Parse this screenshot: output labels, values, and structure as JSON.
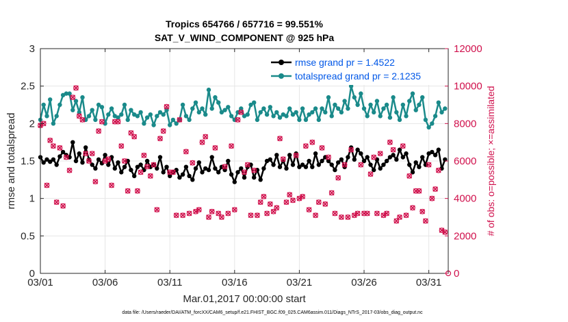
{
  "chart_data": {
    "type": "line",
    "title": "Tropics 654766 / 657716 = 99.551%",
    "subtitle": "SAT_V_WIND_COMPONENT @ 925 hPa",
    "xlabel": "Mar.01,2017 00:00:00 start",
    "ylabel_left": "rmse and totalspread",
    "ylabel_right": "# of obs: o=possible; ×=assimilated",
    "xlim": [
      0,
      31.5
    ],
    "ylim_left": [
      0,
      3
    ],
    "ylim_right": [
      0,
      12000
    ],
    "x_tick_values": [
      0,
      5,
      10,
      15,
      20,
      25,
      30
    ],
    "x_tick_labels": [
      "03/01",
      "03/06",
      "03/11",
      "03/16",
      "03/21",
      "03/26",
      "03/31"
    ],
    "y_left_ticks": [
      "0",
      "0.5",
      "1",
      "1.5",
      "2",
      "2.5",
      "3"
    ],
    "y_right_ticks": [
      "0",
      "2000",
      "4000",
      "6000",
      "8000",
      "10000",
      "12000"
    ],
    "grid": true,
    "legend_position": "top-right",
    "series": [
      {
        "name": "rmse grand pr = 1.4522",
        "axis": "left",
        "color": "#000000",
        "marker": "circle",
        "x": [
          0.0,
          0.25,
          0.5,
          0.75,
          1.0,
          1.25,
          1.5,
          1.75,
          2.0,
          2.25,
          2.5,
          2.75,
          3.0,
          3.25,
          3.5,
          3.75,
          4.0,
          4.25,
          4.5,
          4.75,
          5.0,
          5.25,
          5.5,
          5.75,
          6.0,
          6.25,
          6.5,
          6.75,
          7.0,
          7.25,
          7.5,
          7.75,
          8.0,
          8.25,
          8.5,
          8.75,
          9.0,
          9.25,
          9.5,
          9.75,
          10.0,
          10.25,
          10.5,
          10.75,
          11.0,
          11.25,
          11.5,
          11.75,
          12.0,
          12.25,
          12.5,
          12.75,
          13.0,
          13.25,
          13.5,
          13.75,
          14.0,
          14.25,
          14.5,
          14.75,
          15.0,
          15.25,
          15.5,
          15.75,
          16.0,
          16.25,
          16.5,
          16.75,
          17.0,
          17.25,
          17.5,
          17.75,
          18.0,
          18.25,
          18.5,
          18.75,
          19.0,
          19.25,
          19.5,
          19.75,
          20.0,
          20.25,
          20.5,
          20.75,
          21.0,
          21.25,
          21.5,
          21.75,
          22.0,
          22.25,
          22.5,
          22.75,
          23.0,
          23.25,
          23.5,
          23.75,
          24.0,
          24.25,
          24.5,
          24.75,
          25.0,
          25.25,
          25.5,
          25.75,
          26.0,
          26.25,
          26.5,
          26.75,
          27.0,
          27.25,
          27.5,
          27.75,
          28.0,
          28.25,
          28.5,
          28.75,
          29.0,
          29.25,
          29.5,
          29.75,
          30.0,
          30.25,
          30.5,
          30.75,
          31.0,
          31.25
        ],
        "values": [
          1.55,
          1.48,
          1.52,
          1.49,
          1.52,
          1.45,
          1.56,
          1.62,
          1.58,
          1.55,
          1.75,
          1.5,
          1.6,
          1.48,
          1.68,
          1.52,
          1.45,
          1.4,
          1.52,
          1.47,
          1.58,
          1.45,
          1.55,
          1.4,
          1.48,
          1.35,
          1.42,
          1.5,
          1.38,
          1.3,
          1.42,
          1.45,
          1.38,
          1.5,
          1.42,
          1.45,
          1.4,
          1.55,
          1.35,
          1.42,
          1.3,
          1.35,
          1.38,
          1.28,
          1.32,
          1.42,
          1.3,
          1.25,
          1.4,
          1.48,
          1.35,
          1.4,
          1.38,
          1.55,
          1.4,
          1.35,
          1.42,
          1.38,
          1.5,
          1.32,
          1.22,
          1.35,
          1.4,
          1.28,
          1.42,
          1.45,
          1.28,
          1.38,
          1.25,
          1.4,
          1.5,
          1.52,
          1.45,
          1.58,
          1.42,
          1.5,
          1.4,
          1.58,
          1.45,
          1.6,
          1.42,
          1.45,
          1.42,
          1.5,
          1.42,
          1.6,
          1.45,
          1.5,
          1.55,
          1.5,
          1.45,
          1.38,
          1.48,
          1.52,
          1.42,
          1.55,
          1.68,
          1.52,
          1.65,
          1.6,
          1.5,
          1.55,
          1.45,
          1.38,
          1.52,
          1.4,
          1.45,
          1.5,
          1.55,
          1.58,
          1.52,
          1.65,
          1.55,
          1.6,
          1.45,
          1.35,
          1.48,
          1.42,
          1.55,
          1.45,
          1.6,
          1.62,
          1.58,
          1.65,
          1.4,
          1.52
        ]
      },
      {
        "name": "totalspread grand pr = 2.1235",
        "axis": "left",
        "color": "#1a8a8a",
        "marker": "circle",
        "x": [
          0.0,
          0.25,
          0.5,
          0.75,
          1.0,
          1.25,
          1.5,
          1.75,
          2.0,
          2.25,
          2.5,
          2.75,
          3.0,
          3.25,
          3.5,
          3.75,
          4.0,
          4.25,
          4.5,
          4.75,
          5.0,
          5.25,
          5.5,
          5.75,
          6.0,
          6.25,
          6.5,
          6.75,
          7.0,
          7.25,
          7.5,
          7.75,
          8.0,
          8.25,
          8.5,
          8.75,
          9.0,
          9.25,
          9.5,
          9.75,
          10.0,
          10.25,
          10.5,
          10.75,
          11.0,
          11.25,
          11.5,
          11.75,
          12.0,
          12.25,
          12.5,
          12.75,
          13.0,
          13.25,
          13.5,
          13.75,
          14.0,
          14.25,
          14.5,
          14.75,
          15.0,
          15.25,
          15.5,
          15.75,
          16.0,
          16.25,
          16.5,
          16.75,
          17.0,
          17.25,
          17.5,
          17.75,
          18.0,
          18.25,
          18.5,
          18.75,
          19.0,
          19.25,
          19.5,
          19.75,
          20.0,
          20.25,
          20.5,
          20.75,
          21.0,
          21.25,
          21.5,
          21.75,
          22.0,
          22.25,
          22.5,
          22.75,
          23.0,
          23.25,
          23.5,
          23.75,
          24.0,
          24.25,
          24.5,
          24.75,
          25.0,
          25.25,
          25.5,
          25.75,
          26.0,
          26.25,
          26.5,
          26.75,
          27.0,
          27.25,
          27.5,
          27.75,
          28.0,
          28.25,
          28.5,
          28.75,
          29.0,
          29.25,
          29.5,
          29.75,
          30.0,
          30.25,
          30.5,
          30.75,
          31.0,
          31.25
        ],
        "values": [
          2.05,
          2.25,
          2.1,
          2.32,
          2.0,
          2.1,
          2.25,
          2.38,
          2.4,
          2.4,
          2.18,
          2.3,
          2.15,
          2.35,
          2.05,
          2.1,
          2.18,
          2.05,
          2.25,
          2.22,
          2.0,
          2.12,
          2.2,
          2.1,
          2.08,
          2.12,
          2.25,
          2.05,
          2.18,
          2.12,
          2.1,
          2.15,
          2.0,
          2.08,
          2.12,
          1.98,
          2.1,
          2.15,
          2.12,
          2.18,
          1.98,
          2.05,
          2.0,
          2.05,
          2.25,
          2.1,
          2.05,
          2.2,
          2.28,
          2.15,
          2.2,
          2.12,
          2.45,
          2.2,
          2.35,
          2.28,
          2.15,
          2.18,
          2.22,
          2.1,
          2.05,
          2.15,
          2.2,
          2.1,
          2.12,
          2.25,
          2.28,
          2.05,
          2.15,
          2.2,
          2.12,
          2.22,
          2.1,
          2.15,
          2.08,
          2.12,
          2.1,
          2.2,
          2.12,
          2.15,
          2.05,
          2.2,
          2.05,
          2.12,
          2.15,
          2.2,
          2.05,
          2.2,
          2.15,
          2.35,
          2.1,
          2.25,
          2.2,
          2.15,
          2.3,
          2.2,
          2.5,
          2.35,
          2.25,
          2.4,
          2.2,
          2.1,
          2.25,
          2.15,
          2.3,
          2.1,
          2.2,
          2.25,
          2.08,
          2.35,
          2.15,
          2.05,
          2.25,
          2.1,
          2.3,
          2.4,
          2.18,
          2.25,
          2.35,
          2.05,
          1.95,
          2.0,
          2.1,
          2.28,
          2.15,
          2.2
        ]
      },
      {
        "name": "# of obs possible",
        "axis": "right",
        "color": "#d0104c",
        "marker": "circle-open",
        "x": [
          0.0,
          0.25,
          0.5,
          0.75,
          1.0,
          1.25,
          1.5,
          1.75,
          2.0,
          2.25,
          2.5,
          2.75,
          3.0,
          3.25,
          3.5,
          3.75,
          4.0,
          4.25,
          4.5,
          4.75,
          5.0,
          5.25,
          5.5,
          5.75,
          6.0,
          6.25,
          6.5,
          6.75,
          7.0,
          7.25,
          7.5,
          7.75,
          8.0,
          8.25,
          8.5,
          8.75,
          9.0,
          9.25,
          9.5,
          9.75,
          10.0,
          10.25,
          10.5,
          10.75,
          11.0,
          11.25,
          11.5,
          11.75,
          12.0,
          12.25,
          12.5,
          12.75,
          13.0,
          13.25,
          13.5,
          13.75,
          14.0,
          14.25,
          14.5,
          14.75,
          15.0,
          15.25,
          15.5,
          15.75,
          16.0,
          16.25,
          16.5,
          16.75,
          17.0,
          17.25,
          17.5,
          17.75,
          18.0,
          18.25,
          18.5,
          18.75,
          19.0,
          19.25,
          19.5,
          19.75,
          20.0,
          20.25,
          20.5,
          20.75,
          21.0,
          21.25,
          21.5,
          21.75,
          22.0,
          22.25,
          22.5,
          22.75,
          23.0,
          23.25,
          23.5,
          23.75,
          24.0,
          24.25,
          24.5,
          24.75,
          25.0,
          25.25,
          25.5,
          25.75,
          26.0,
          26.25,
          26.5,
          26.75,
          27.0,
          27.25,
          27.5,
          27.75,
          28.0,
          28.25,
          28.5,
          28.75,
          29.0,
          29.25,
          29.5,
          29.75,
          30.0,
          30.25,
          30.5,
          30.75,
          31.0,
          31.25
        ],
        "values": [
          7900,
          8000,
          4700,
          7100,
          6800,
          3800,
          6700,
          3600,
          6200,
          5500,
          9400,
          9900,
          8400,
          8200,
          6400,
          6000,
          6400,
          4900,
          7600,
          8100,
          6000,
          6100,
          4700,
          8100,
          8100,
          6800,
          6000,
          4400,
          7500,
          7300,
          4400,
          5400,
          6300,
          5700,
          5200,
          5800,
          3400,
          7200,
          7600,
          8900,
          5400,
          5400,
          3100,
          8200,
          3100,
          6500,
          3200,
          5900,
          3300,
          3400,
          7000,
          7300,
          3000,
          3300,
          6700,
          3200,
          3000,
          5700,
          3200,
          6800,
          3400,
          8200,
          8600,
          5400,
          5800,
          3100,
          5500,
          3100,
          3800,
          4100,
          3200,
          3700,
          3300,
          3500,
          7200,
          6100,
          3800,
          4200,
          3900,
          6300,
          4000,
          4100,
          6800,
          3400,
          7000,
          3100,
          3800,
          6700,
          3700,
          6200,
          4300,
          3200,
          5100,
          3000,
          5800,
          3000,
          6600,
          3100,
          3200,
          5800,
          3200,
          3200,
          5300,
          6200,
          3200,
          6400,
          3100,
          3200,
          7000,
          6600,
          2800,
          3000,
          6800,
          3100,
          5200,
          3500,
          4400,
          4400,
          3300,
          2800,
          5800,
          4000,
          4500,
          5500,
          2300,
          2200
        ]
      },
      {
        "name": "# of obs assimilated",
        "axis": "right",
        "color": "#d0104c",
        "marker": "cross",
        "x": [
          0.0,
          0.25,
          0.5,
          0.75,
          1.0,
          1.25,
          1.5,
          1.75,
          2.0,
          2.25,
          2.5,
          2.75,
          3.0,
          3.25,
          3.5,
          3.75,
          4.0,
          4.25,
          4.5,
          4.75,
          5.0,
          5.25,
          5.5,
          5.75,
          6.0,
          6.25,
          6.5,
          6.75,
          7.0,
          7.25,
          7.5,
          7.75,
          8.0,
          8.25,
          8.5,
          8.75,
          9.0,
          9.25,
          9.5,
          9.75,
          10.0,
          10.25,
          10.5,
          10.75,
          11.0,
          11.25,
          11.5,
          11.75,
          12.0,
          12.25,
          12.5,
          12.75,
          13.0,
          13.25,
          13.5,
          13.75,
          14.0,
          14.25,
          14.5,
          14.75,
          15.0,
          15.25,
          15.5,
          15.75,
          16.0,
          16.25,
          16.5,
          16.75,
          17.0,
          17.25,
          17.5,
          17.75,
          18.0,
          18.25,
          18.5,
          18.75,
          19.0,
          19.25,
          19.5,
          19.75,
          20.0,
          20.25,
          20.5,
          20.75,
          21.0,
          21.25,
          21.5,
          21.75,
          22.0,
          22.25,
          22.5,
          22.75,
          23.0,
          23.25,
          23.5,
          23.75,
          24.0,
          24.25,
          24.5,
          24.75,
          25.0,
          25.25,
          25.5,
          25.75,
          26.0,
          26.25,
          26.5,
          26.75,
          27.0,
          27.25,
          27.5,
          27.75,
          28.0,
          28.25,
          28.5,
          28.75,
          29.0,
          29.25,
          29.5,
          29.75,
          30.0,
          30.25,
          30.5,
          30.75,
          31.0,
          31.25
        ],
        "values": [
          7900,
          8000,
          4700,
          7100,
          6800,
          3800,
          6700,
          3600,
          6200,
          5500,
          9400,
          9900,
          8400,
          8200,
          6400,
          6000,
          6400,
          4900,
          7600,
          8100,
          6000,
          6100,
          4700,
          8100,
          8100,
          6800,
          6000,
          4400,
          7500,
          7300,
          4400,
          5400,
          6300,
          5700,
          5200,
          5800,
          3400,
          7200,
          7600,
          8900,
          5400,
          5400,
          3100,
          8200,
          3100,
          6500,
          3200,
          5900,
          3300,
          3400,
          7000,
          7300,
          3000,
          3300,
          6700,
          3200,
          3000,
          5700,
          3200,
          6800,
          3400,
          8200,
          8600,
          5400,
          5800,
          3100,
          5500,
          3100,
          3800,
          4100,
          3200,
          3700,
          3300,
          3500,
          7200,
          6100,
          3800,
          4200,
          3900,
          6300,
          4000,
          4100,
          6800,
          3400,
          7000,
          3100,
          3800,
          6700,
          3700,
          6200,
          4300,
          3200,
          5100,
          3000,
          5800,
          3000,
          6600,
          3100,
          3200,
          5800,
          3200,
          3200,
          5300,
          6200,
          3200,
          6400,
          3100,
          3200,
          7000,
          6600,
          2800,
          3000,
          6800,
          3100,
          5200,
          3500,
          4400,
          4400,
          3300,
          2800,
          5800,
          4000,
          4500,
          5500,
          2300,
          2200
        ]
      }
    ],
    "legend_entries": [
      "rmse grand pr = 1.4522",
      "totalspread grand pr = 2.1235"
    ],
    "annotations": [
      "0"
    ],
    "footnote": "data file: /Users/raeder/DAI/ATM_forcXX/CAM6_setup/f.e21.FHIST_BGC.f09_025.CAM6assim.011/Diags_NTrS_2017-03/obs_diag_output.nc"
  }
}
